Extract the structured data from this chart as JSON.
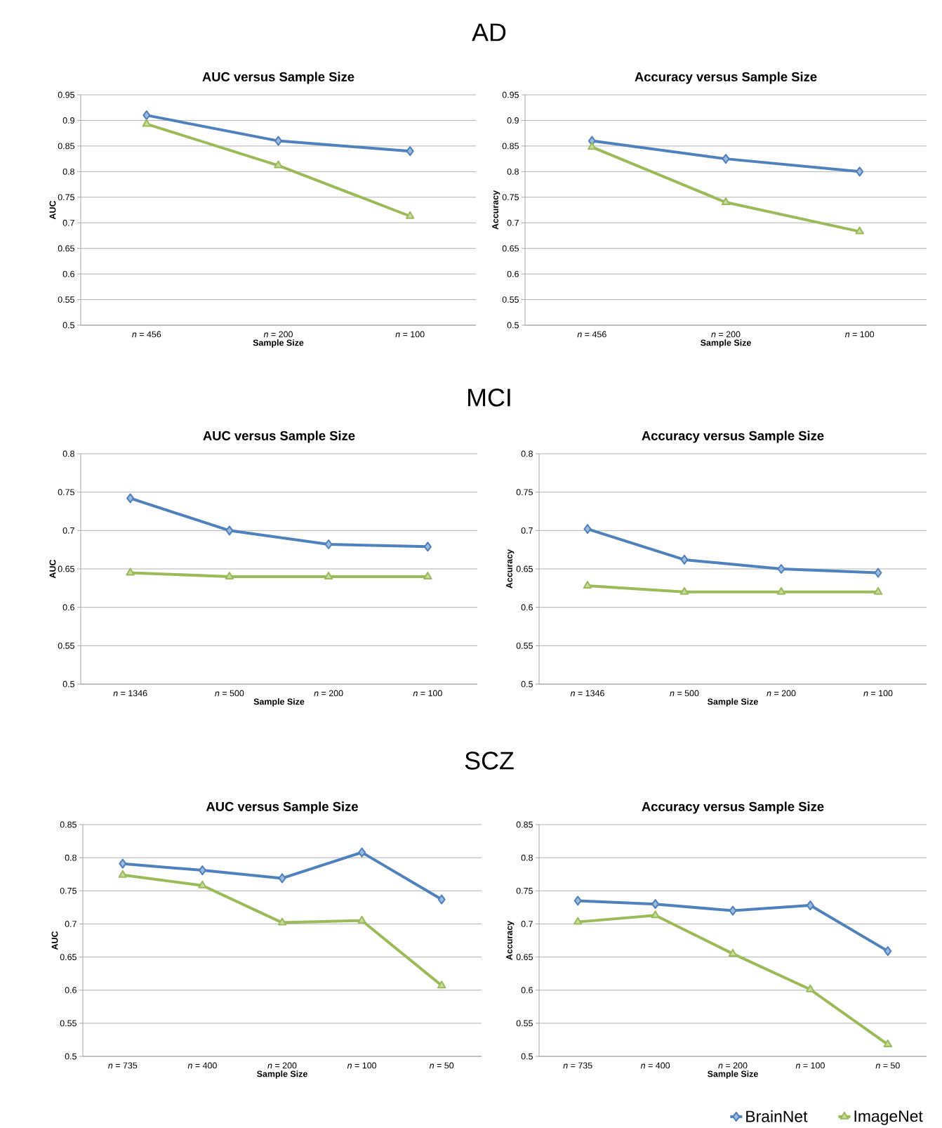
{
  "chart_data": [
    {
      "type": "line",
      "title": "AUC versus Sample Size",
      "xlabel": "Sample Size",
      "ylabel": "AUC",
      "annotations": [
        "AD"
      ],
      "categories": [
        "*n* = 456",
        "*n* = 200",
        "*n* = 100"
      ],
      "ylim": [
        0.5,
        0.95
      ],
      "yticks": [
        0.5,
        0.55,
        0.6,
        0.65,
        0.7,
        0.75,
        0.8,
        0.85,
        0.9,
        0.95
      ],
      "grid": "y",
      "line_style": "solid",
      "series": [
        {
          "color": "#4f81bd",
          "marker": "diamond",
          "values": [
            0.91,
            0.86,
            0.84
          ]
        },
        {
          "color": "#9bbb59",
          "marker": "triangle",
          "values": [
            0.893,
            0.812,
            0.713
          ]
        }
      ]
    },
    {
      "type": "line",
      "title": "Accuracy versus Sample Size",
      "xlabel": "Sample Size",
      "ylabel": "Accuracy",
      "categories": [
        "*n* = 456",
        "*n* = 200",
        "*n* = 100"
      ],
      "ylim": [
        0.5,
        0.95
      ],
      "yticks": [
        0.5,
        0.55,
        0.6,
        0.65,
        0.7,
        0.75,
        0.8,
        0.85,
        0.9,
        0.95
      ],
      "grid": "y",
      "line_style": "solid",
      "series": [
        {
          "color": "#4f81bd",
          "marker": "diamond",
          "values": [
            0.86,
            0.825,
            0.8
          ]
        },
        {
          "color": "#9bbb59",
          "marker": "triangle",
          "values": [
            0.848,
            0.74,
            0.683
          ]
        }
      ]
    },
    {
      "type": "line",
      "title": "AUC versus Sample Size",
      "xlabel": "Sample Size",
      "ylabel": "AUC",
      "annotations": [
        "MCI"
      ],
      "categories": [
        "*n* = 1346",
        "*n* = 500",
        "*n* = 200",
        "*n* = 100"
      ],
      "ylim": [
        0.5,
        0.8
      ],
      "yticks": [
        0.5,
        0.55,
        0.6,
        0.65,
        0.7,
        0.75,
        0.8
      ],
      "grid": "y",
      "line_style": "solid",
      "series": [
        {
          "color": "#4f81bd",
          "marker": "diamond",
          "values": [
            0.742,
            0.7,
            0.682,
            0.679
          ]
        },
        {
          "color": "#9bbb59",
          "marker": "triangle",
          "values": [
            0.645,
            0.64,
            0.64,
            0.64
          ]
        }
      ]
    },
    {
      "type": "line",
      "title": "Accuracy versus Sample Size",
      "xlabel": "Sample Size",
      "ylabel": "Accuracy",
      "categories": [
        "*n* = 1346",
        "*n* = 500",
        "*n* = 200",
        "*n* = 100"
      ],
      "ylim": [
        0.5,
        0.8
      ],
      "yticks": [
        0.5,
        0.55,
        0.6,
        0.65,
        0.7,
        0.75,
        0.8
      ],
      "grid": "y",
      "line_style": "solid",
      "series": [
        {
          "color": "#4f81bd",
          "marker": "diamond",
          "values": [
            0.702,
            0.662,
            0.65,
            0.645
          ]
        },
        {
          "color": "#9bbb59",
          "marker": "triangle",
          "values": [
            0.628,
            0.62,
            0.62,
            0.62
          ]
        }
      ]
    },
    {
      "type": "line",
      "title": "AUC versus Sample Size",
      "xlabel": "Sample Size",
      "ylabel": "AUC",
      "annotations": [
        "SCZ"
      ],
      "categories": [
        "*n* = 735",
        "*n* = 400",
        "*n* = 200",
        "*n* = 100",
        "*n* = 50"
      ],
      "ylim": [
        0.5,
        0.85
      ],
      "yticks": [
        0.5,
        0.55,
        0.6,
        0.65,
        0.7,
        0.75,
        0.8,
        0.85
      ],
      "grid": "y",
      "line_style": "solid",
      "series": [
        {
          "color": "#4f81bd",
          "marker": "diamond",
          "values": [
            0.791,
            0.781,
            0.769,
            0.808,
            0.737
          ]
        },
        {
          "color": "#9bbb59",
          "marker": "triangle",
          "values": [
            0.774,
            0.758,
            0.702,
            0.705,
            0.607
          ]
        }
      ]
    },
    {
      "type": "line",
      "title": "Accuracy versus Sample Size",
      "xlabel": "Sample Size",
      "ylabel": "Accuracy",
      "categories": [
        "*n* = 735",
        "*n* = 400",
        "*n* = 200",
        "*n* = 100",
        "*n* = 50"
      ],
      "ylim": [
        0.5,
        0.85
      ],
      "yticks": [
        0.5,
        0.55,
        0.6,
        0.65,
        0.7,
        0.75,
        0.8,
        0.85
      ],
      "grid": "y",
      "line_style": "solid",
      "legend": "bottom right",
      "series": [
        {
          "name": "BrainNet",
          "color": "#4f81bd",
          "marker": "diamond",
          "values": [
            0.735,
            0.73,
            0.72,
            0.728,
            0.659
          ]
        },
        {
          "name": "ImageNet",
          "color": "#9bbb59",
          "marker": "triangle",
          "values": [
            0.703,
            0.713,
            0.655,
            0.601,
            0.518
          ]
        }
      ]
    }
  ]
}
